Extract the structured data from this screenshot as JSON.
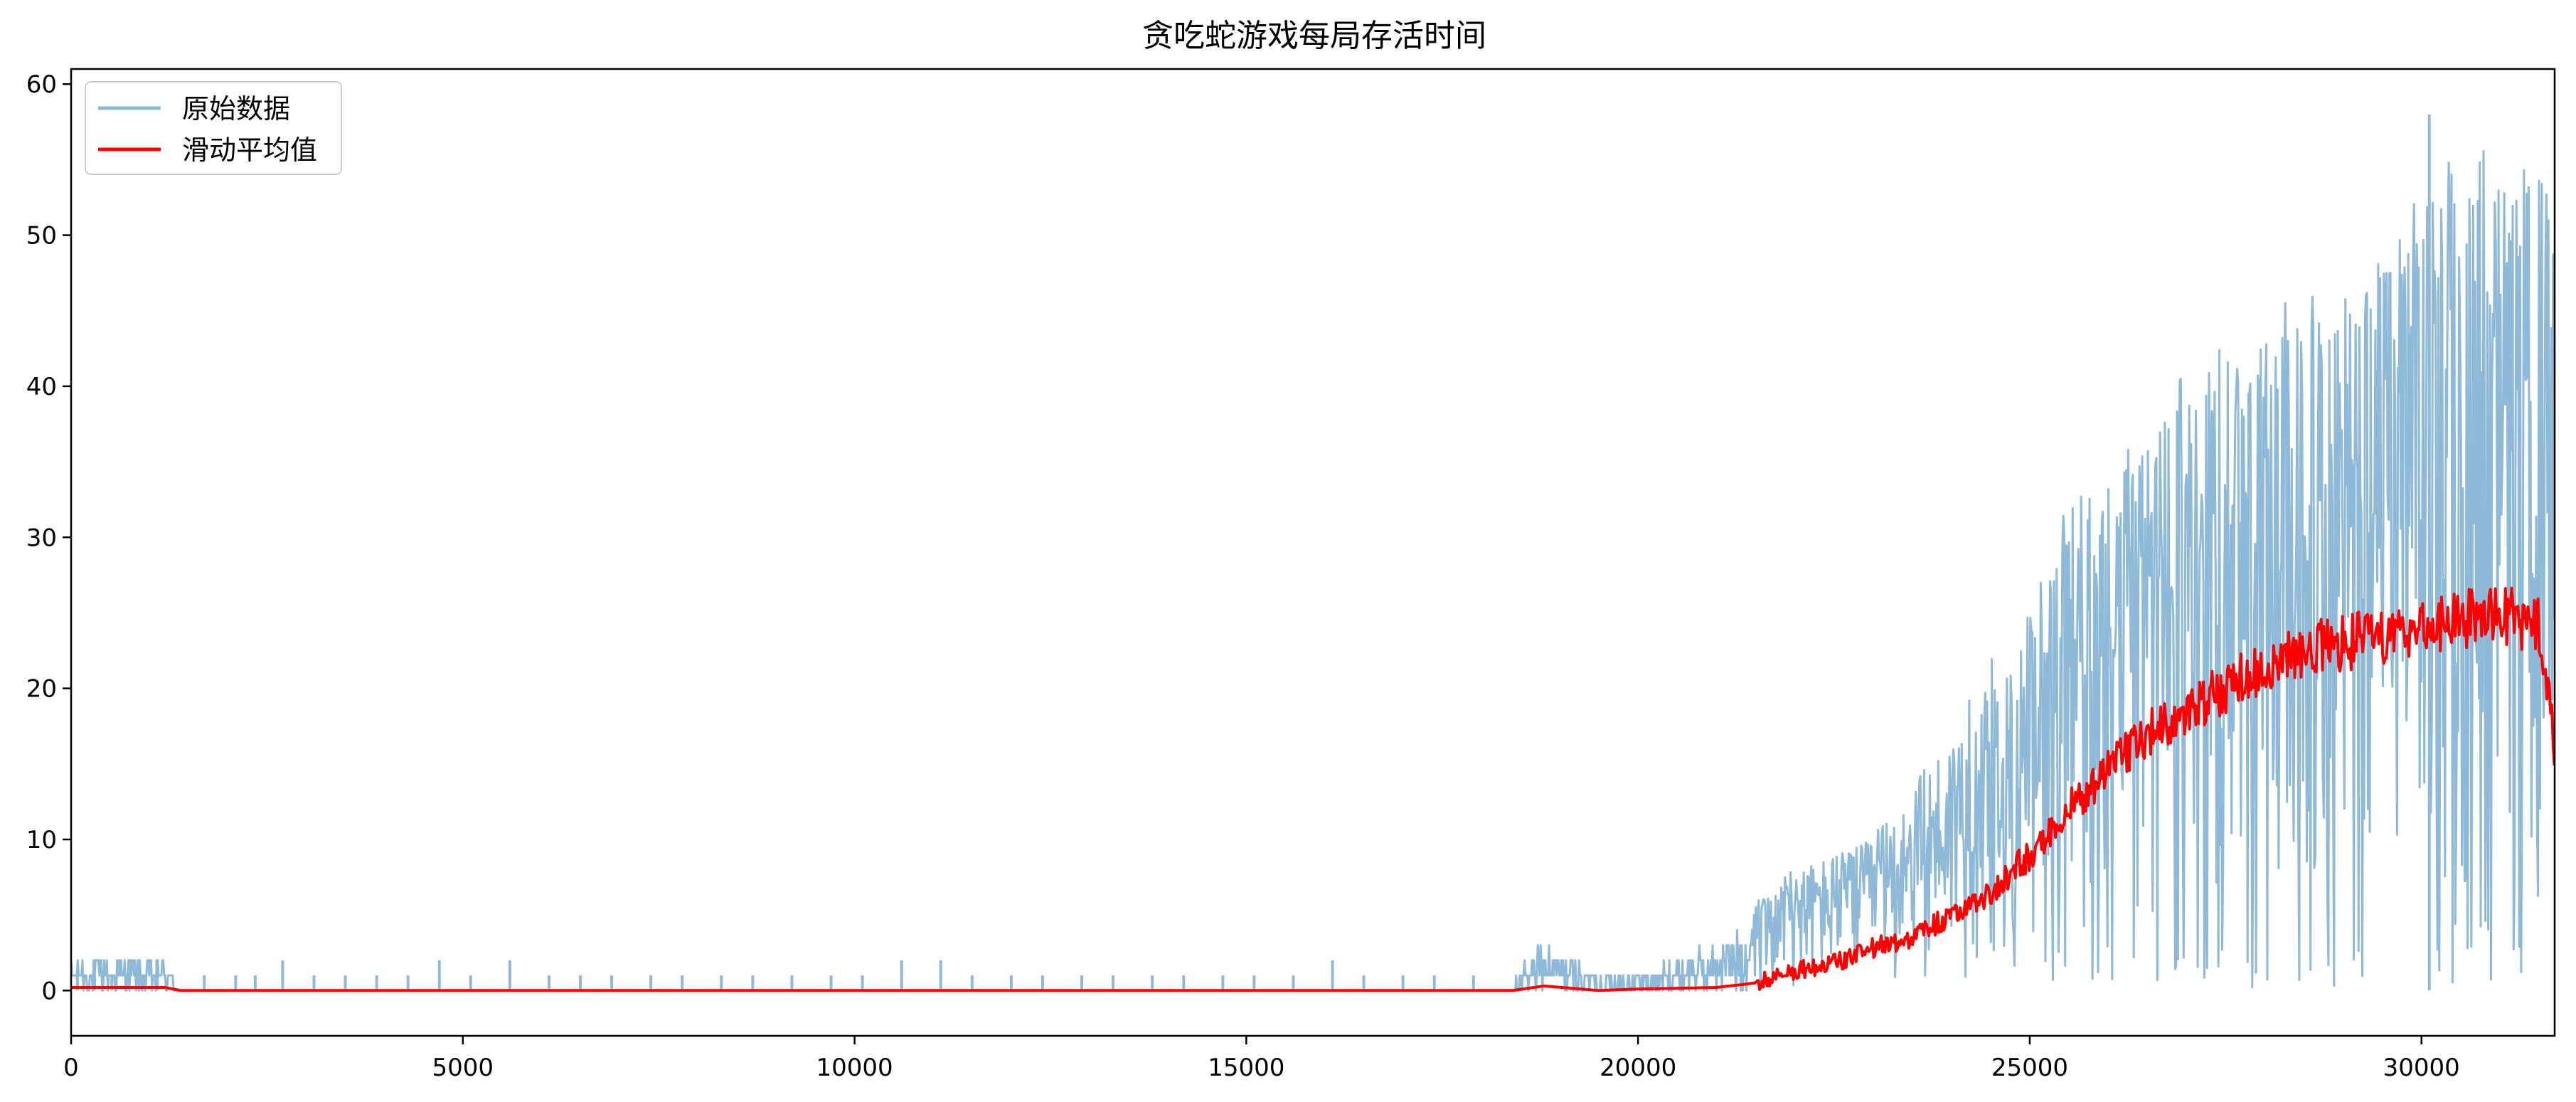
{
  "chart_data": {
    "type": "line",
    "title": "贪吃蛇游戏每局存活时间",
    "xlabel": "",
    "ylabel": "",
    "xlim": [
      0,
      31700
    ],
    "ylim": [
      -3,
      61
    ],
    "x_ticks": [
      0,
      5000,
      10000,
      15000,
      20000,
      25000,
      30000
    ],
    "y_ticks": [
      0,
      10,
      20,
      30,
      40,
      50,
      60
    ],
    "grid": false,
    "legend_position": "top-left",
    "series": [
      {
        "name": "原始数据",
        "color": "#8fb9d9",
        "style": "noisy episode values",
        "x": [
          0,
          1200,
          1300,
          18400,
          18800,
          19500,
          20000,
          21000,
          22000,
          23000,
          24000,
          25000,
          25500,
          26000,
          27000,
          28000,
          29000,
          30000,
          31000,
          31700
        ],
        "low": [
          0,
          0,
          0,
          0,
          0,
          0,
          0,
          0,
          0,
          0,
          0,
          0,
          0,
          0,
          0,
          0,
          0,
          0,
          0,
          0
        ],
        "high": [
          2,
          2,
          1,
          1,
          3,
          1,
          1,
          3,
          8,
          10,
          17,
          25,
          31,
          34,
          39,
          43,
          46,
          52,
          54,
          54
        ],
        "peak_value": 58,
        "peak_x": 30100
      },
      {
        "name": "滑动平均值",
        "color": "#ff0000",
        "style": "moving average",
        "x": [
          0,
          1200,
          1400,
          18400,
          18800,
          19500,
          20000,
          21000,
          21500,
          22000,
          22500,
          23000,
          23500,
          24000,
          24500,
          25000,
          25500,
          26000,
          26500,
          27000,
          27500,
          28000,
          28500,
          29000,
          29500,
          30000,
          30500,
          31000,
          31500,
          31700
        ],
        "y": [
          0.2,
          0.2,
          0,
          0,
          0.3,
          0,
          0.1,
          0.2,
          0.5,
          1.3,
          1.8,
          2.8,
          3.5,
          5,
          6.5,
          9,
          12,
          14.5,
          17,
          18.5,
          20,
          21.5,
          22.5,
          23,
          23.5,
          24,
          24.5,
          25,
          24,
          16
        ]
      }
    ]
  }
}
